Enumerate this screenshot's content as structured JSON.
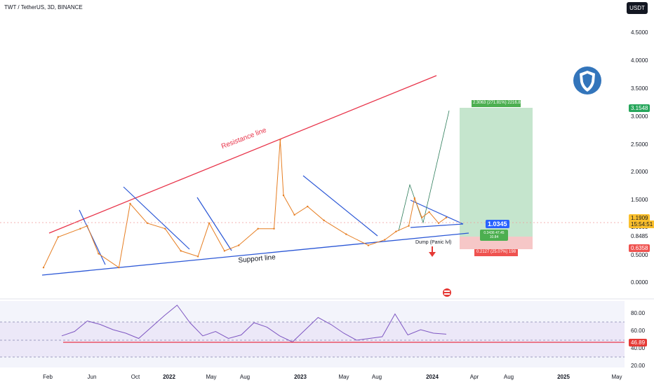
{
  "header": {
    "title": "TWT / TetherUS, 3D, BINANCE",
    "currency": "USDT"
  },
  "price_axis": [
    "4.5000",
    "4.0000",
    "3.5000",
    "3.0000",
    "2.5000",
    "2.0000",
    "1.5000",
    "1.0000",
    "0.5000",
    "0.0000"
  ],
  "price_tags": {
    "target": "3.1548",
    "current": "1.1909",
    "countdown": "15:54:51",
    "mid": "0.8485",
    "stop": "0.6358",
    "entry": "1.0345"
  },
  "rsi_axis": [
    "80.00",
    "60.00",
    "40.00",
    "20.00"
  ],
  "rsi_value": "46.89",
  "time_axis": [
    "Feb",
    "Jun",
    "Oct",
    "2022",
    "May",
    "Aug",
    "2023",
    "May",
    "Aug",
    "2024",
    "Apr",
    "Aug",
    "2025",
    "May"
  ],
  "annotations": {
    "resistance": "Resistance line",
    "support": "Support line",
    "dump": "Dump (Panic lvl)",
    "profit_box": "2.3063 (271.81%) 2216.86",
    "loss_box": "0.2127 (25.07%) 198",
    "risk_reward": "0.3436 47.45 10.84"
  },
  "colors": {
    "resistance": "#e8344a",
    "support": "#2b57d6",
    "profit": "#26a65b",
    "loss": "#ef5350",
    "rsi_line": "#7e57c2",
    "rsi_ma": "#e6c23a",
    "entry": "#2962ff",
    "current": "#fbc02d"
  },
  "chart_data": {
    "type": "line",
    "symbol": "TWT / TetherUS",
    "interval": "3D",
    "exchange": "BINANCE",
    "x": [
      "2021-01-20",
      "2021-03-01",
      "2021-05-01",
      "2021-05-20",
      "2021-06-20",
      "2021-08-15",
      "2021-09-15",
      "2021-11-01",
      "2021-12-20",
      "2022-02-01",
      "2022-03-20",
      "2022-04-20",
      "2022-06-01",
      "2022-07-10",
      "2022-09-01",
      "2022-10-15",
      "2022-11-01",
      "2022-11-10",
      "2022-12-10",
      "2023-01-15",
      "2023-03-01",
      "2023-05-01",
      "2023-07-01",
      "2023-08-15",
      "2023-09-15",
      "2023-10-20",
      "2023-11-05",
      "2023-11-25",
      "2023-12-15",
      "2024-01-10",
      "2024-01-31"
    ],
    "values": [
      0.3,
      0.85,
      1.0,
      1.05,
      0.55,
      0.3,
      1.45,
      1.1,
      1.0,
      0.6,
      0.5,
      1.1,
      0.6,
      0.7,
      1.0,
      1.0,
      2.6,
      1.6,
      1.25,
      1.4,
      1.15,
      0.9,
      0.7,
      0.8,
      0.95,
      1.05,
      1.55,
      1.2,
      1.3,
      1.1,
      1.2
    ],
    "trendlines": [
      {
        "name": "Resistance line",
        "from": [
          "2021-02-10",
          1.25
        ],
        "to": [
          "2024-01-15",
          3.9
        ]
      },
      {
        "name": "Support line",
        "from": [
          "2021-01-15",
          0.15
        ],
        "to": [
          "2024-02-15",
          0.9
        ]
      }
    ],
    "position": {
      "entry": 0.8485,
      "target": 3.1548,
      "stop": 0.6358
    },
    "ylim": [
      0,
      4.5
    ]
  },
  "rsi_data": {
    "values": [
      45,
      50,
      62,
      58,
      52,
      48,
      42,
      55,
      68,
      80,
      60,
      45,
      50,
      42,
      46,
      60,
      55,
      45,
      38,
      52,
      66,
      58,
      48,
      40,
      42,
      44,
      70,
      46,
      52,
      48,
      46.89
    ],
    "ylim": [
      20,
      90
    ],
    "levels": [
      70,
      30
    ]
  }
}
